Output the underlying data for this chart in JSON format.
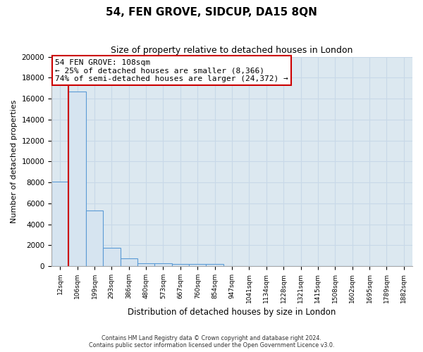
{
  "title": "54, FEN GROVE, SIDCUP, DA15 8QN",
  "subtitle": "Size of property relative to detached houses in London",
  "xlabel": "Distribution of detached houses by size in London",
  "ylabel": "Number of detached properties",
  "bar_color": "#d6e4f0",
  "bar_edge_color": "#5b9bd5",
  "categories": [
    "12sqm",
    "106sqm",
    "199sqm",
    "293sqm",
    "386sqm",
    "480sqm",
    "573sqm",
    "667sqm",
    "760sqm",
    "854sqm",
    "947sqm",
    "1041sqm",
    "1134sqm",
    "1228sqm",
    "1321sqm",
    "1415sqm",
    "1508sqm",
    "1602sqm",
    "1695sqm",
    "1789sqm",
    "1882sqm"
  ],
  "values": [
    8100,
    16700,
    5300,
    1750,
    750,
    300,
    250,
    200,
    200,
    200,
    0,
    0,
    0,
    0,
    0,
    0,
    0,
    0,
    0,
    0,
    0
  ],
  "ylim": [
    0,
    20000
  ],
  "yticks": [
    0,
    2000,
    4000,
    6000,
    8000,
    10000,
    12000,
    14000,
    16000,
    18000,
    20000
  ],
  "property_line_x": 0.5,
  "annotation_title": "54 FEN GROVE: 108sqm",
  "annotation_line1": "← 25% of detached houses are smaller (8,366)",
  "annotation_line2": "74% of semi-detached houses are larger (24,372) →",
  "annotation_box_color": "#ffffff",
  "annotation_border_color": "#cc0000",
  "property_line_color": "#cc0000",
  "footer_line1": "Contains HM Land Registry data © Crown copyright and database right 2024.",
  "footer_line2": "Contains public sector information licensed under the Open Government Licence v3.0.",
  "background_color": "#ffffff",
  "plot_background": "#dce8f0",
  "grid_color": "#c8d8e8"
}
